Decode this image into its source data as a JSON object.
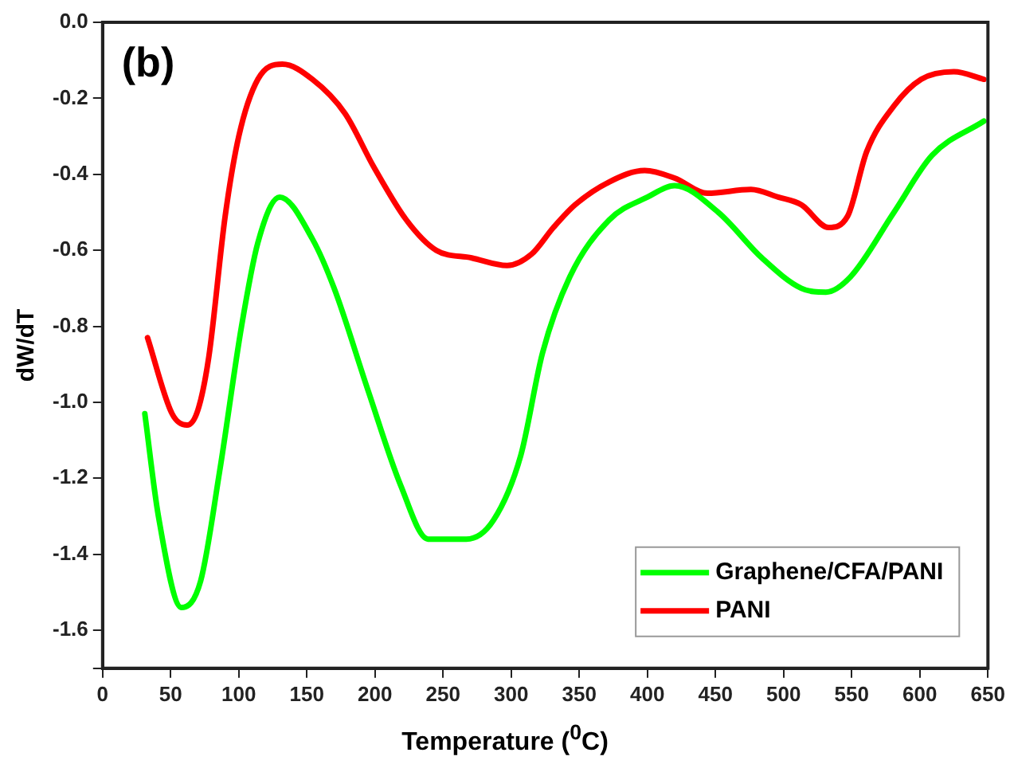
{
  "chart_data": {
    "type": "line",
    "xlabel": "Temperature ($^{0}$C)",
    "ylabel": "dW/dT",
    "annotations": [
      "(b)"
    ],
    "xlim": [
      0,
      650
    ],
    "xticks": [
      0,
      50,
      100,
      150,
      200,
      250,
      300,
      350,
      400,
      450,
      500,
      550,
      600,
      650
    ],
    "ylim": [
      -1.7,
      0
    ],
    "yticks": [
      {
        "value": -1.7,
        "label": null
      },
      -1.6,
      -1.4,
      -1.2,
      {
        "value": -1,
        "label": "-1.0"
      },
      -0.8,
      -0.6,
      -0.4,
      -0.2,
      {
        "value": 0,
        "label": "0.0"
      }
    ],
    "grid": false,
    "legend": "bottom right",
    "marker": "none",
    "line_style": "solid",
    "series": [
      {
        "name": "Graphene/CFA/PANI",
        "color": "#00ff00",
        "x": [
          31,
          41,
          58,
          72,
          86,
          102,
          114,
          130,
          154,
          170,
          195,
          219,
          239,
          267,
          287,
          307,
          323,
          343,
          372,
          400,
          420,
          452,
          484,
          513,
          531,
          549,
          581,
          609,
          647
        ],
        "values": [
          -1.03,
          -1.3,
          -1.54,
          -1.47,
          -1.18,
          -0.8,
          -0.58,
          -0.46,
          -0.57,
          -0.7,
          -0.97,
          -1.22,
          -1.36,
          -1.36,
          -1.31,
          -1.14,
          -0.87,
          -0.67,
          -0.52,
          -0.46,
          -0.43,
          -0.5,
          -0.62,
          -0.7,
          -0.71,
          -0.67,
          -0.5,
          -0.35,
          -0.26
        ]
      },
      {
        "name": "PANI",
        "color": "#ff0000",
        "x": [
          33,
          51,
          62,
          70,
          78,
          90,
          100,
          114,
          132,
          154,
          178,
          199,
          223,
          245,
          271,
          297,
          315,
          331,
          347,
          372,
          398,
          420,
          444,
          476,
          496,
          513,
          533,
          547,
          561,
          581,
          601,
          625,
          647
        ],
        "values": [
          -0.83,
          -1.03,
          -1.06,
          -1.02,
          -0.88,
          -0.51,
          -0.3,
          -0.15,
          -0.11,
          -0.15,
          -0.24,
          -0.38,
          -0.52,
          -0.6,
          -0.62,
          -0.64,
          -0.61,
          -0.54,
          -0.48,
          -0.42,
          -0.39,
          -0.41,
          -0.45,
          -0.44,
          -0.46,
          -0.48,
          -0.54,
          -0.51,
          -0.34,
          -0.22,
          -0.15,
          -0.13,
          -0.15
        ]
      }
    ]
  }
}
